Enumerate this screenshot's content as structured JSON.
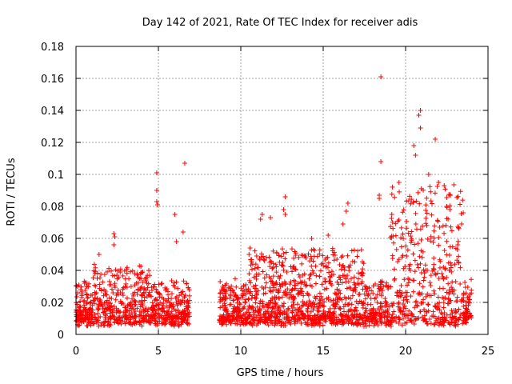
{
  "chart_data": {
    "type": "scatter",
    "title": "Day 142 of 2021, Rate Of TEC Index for receiver adis",
    "xlabel": "GPS time / hours",
    "ylabel": "ROTI / TECUs",
    "xlim": [
      0,
      25
    ],
    "ylim": [
      0,
      0.18
    ],
    "xticks": [
      "0",
      "5",
      "10",
      "15",
      "20",
      "25"
    ],
    "yticks": [
      "0",
      "0.02",
      "0.04",
      "0.06",
      "0.08",
      "0.1",
      "0.12",
      "0.14",
      "0.16",
      "0.18"
    ],
    "grid": true,
    "marker": "+",
    "series_color": "#ff0000",
    "coverage_hours": [
      [
        0,
        6.9
      ],
      [
        8.7,
        24.0
      ]
    ],
    "notable_points": [
      {
        "x": 18.5,
        "y": 0.161
      },
      {
        "x": 20.9,
        "y": 0.14
      },
      {
        "x": 20.8,
        "y": 0.137
      },
      {
        "x": 20.9,
        "y": 0.129
      },
      {
        "x": 21.8,
        "y": 0.122
      },
      {
        "x": 20.5,
        "y": 0.118
      },
      {
        "x": 20.6,
        "y": 0.112
      },
      {
        "x": 18.5,
        "y": 0.108
      },
      {
        "x": 6.6,
        "y": 0.107
      },
      {
        "x": 4.9,
        "y": 0.101
      },
      {
        "x": 4.9,
        "y": 0.09
      },
      {
        "x": 4.9,
        "y": 0.083
      },
      {
        "x": 4.95,
        "y": 0.081
      },
      {
        "x": 6.0,
        "y": 0.075
      },
      {
        "x": 6.1,
        "y": 0.058
      },
      {
        "x": 6.5,
        "y": 0.064
      },
      {
        "x": 2.3,
        "y": 0.063
      },
      {
        "x": 2.35,
        "y": 0.061
      },
      {
        "x": 2.3,
        "y": 0.056
      },
      {
        "x": 1.4,
        "y": 0.05
      },
      {
        "x": 12.7,
        "y": 0.086
      },
      {
        "x": 12.6,
        "y": 0.078
      },
      {
        "x": 12.7,
        "y": 0.075
      },
      {
        "x": 11.3,
        "y": 0.075
      },
      {
        "x": 11.2,
        "y": 0.072
      },
      {
        "x": 11.8,
        "y": 0.073
      },
      {
        "x": 10.5,
        "y": 0.05
      },
      {
        "x": 16.5,
        "y": 0.082
      },
      {
        "x": 16.4,
        "y": 0.077
      },
      {
        "x": 16.2,
        "y": 0.069
      },
      {
        "x": 15.3,
        "y": 0.062
      },
      {
        "x": 14.3,
        "y": 0.06
      },
      {
        "x": 18.4,
        "y": 0.087
      },
      {
        "x": 18.4,
        "y": 0.085
      },
      {
        "x": 19.6,
        "y": 0.095
      },
      {
        "x": 21.4,
        "y": 0.1
      },
      {
        "x": 22.5,
        "y": 0.08
      },
      {
        "x": 23.5,
        "y": 0.076
      },
      {
        "x": 23.4,
        "y": 0.069
      },
      {
        "x": 22.0,
        "y": 0.095
      }
    ],
    "baseline_band": {
      "typical_low": 0.005,
      "typical_high": 0.03
    },
    "activity_periods": [
      {
        "from": 1.0,
        "to": 4.5,
        "typical_max": 0.04
      },
      {
        "from": 10.5,
        "to": 17.5,
        "typical_max": 0.05
      },
      {
        "from": 19.0,
        "to": 23.5,
        "typical_max": 0.09
      }
    ]
  }
}
